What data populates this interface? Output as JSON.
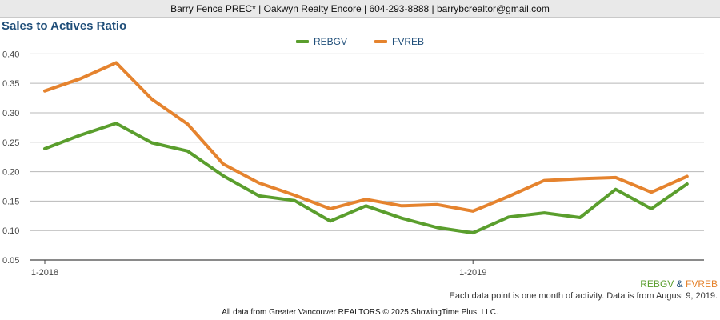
{
  "header": {
    "text": "Barry Fence PREC* | Oakwyn Realty Encore | 604-293-8888 | barrybcrealtor@gmail.com"
  },
  "chart_data": {
    "type": "line",
    "title": "Sales to Actives Ratio",
    "xlabel": "",
    "ylabel": "",
    "x": [
      "1-2018",
      "2-2018",
      "3-2018",
      "4-2018",
      "5-2018",
      "6-2018",
      "7-2018",
      "8-2018",
      "9-2018",
      "10-2018",
      "11-2018",
      "12-2018",
      "1-2019",
      "2-2019",
      "3-2019",
      "4-2019",
      "5-2019",
      "6-2019",
      "7-2019"
    ],
    "x_tick_labels": [
      "1-2018",
      "1-2019"
    ],
    "y_ticks": [
      0.05,
      0.1,
      0.15,
      0.2,
      0.25,
      0.3,
      0.35,
      0.4
    ],
    "y_tick_labels": [
      "0.05",
      "0.10",
      "0.15",
      "0.20",
      "0.25",
      "0.30",
      "0.35",
      "0.40"
    ],
    "ylim": [
      0.05,
      0.41
    ],
    "grid": true,
    "legend_position": "top-center",
    "series": [
      {
        "name": "REBGV",
        "color": "#5a9e2d",
        "values": [
          0.239,
          0.262,
          0.282,
          0.249,
          0.235,
          0.193,
          0.159,
          0.151,
          0.116,
          0.142,
          0.121,
          0.105,
          0.096,
          0.123,
          0.13,
          0.122,
          0.17,
          0.137,
          0.179
        ]
      },
      {
        "name": "FVREB",
        "color": "#e5832e",
        "values": [
          0.337,
          0.358,
          0.385,
          0.323,
          0.281,
          0.213,
          0.181,
          0.16,
          0.137,
          0.153,
          0.142,
          0.144,
          0.133,
          0.158,
          0.185,
          0.188,
          0.19,
          0.165,
          0.192
        ]
      }
    ]
  },
  "source": {
    "name1": "REBGV",
    "amp": "&",
    "name2": "FVREB"
  },
  "footnote": "Each data point is one month of activity. Data is from August 9, 2019.",
  "credit": "All data from Greater Vancouver REALTORS © 2025 ShowingTime Plus, LLC."
}
